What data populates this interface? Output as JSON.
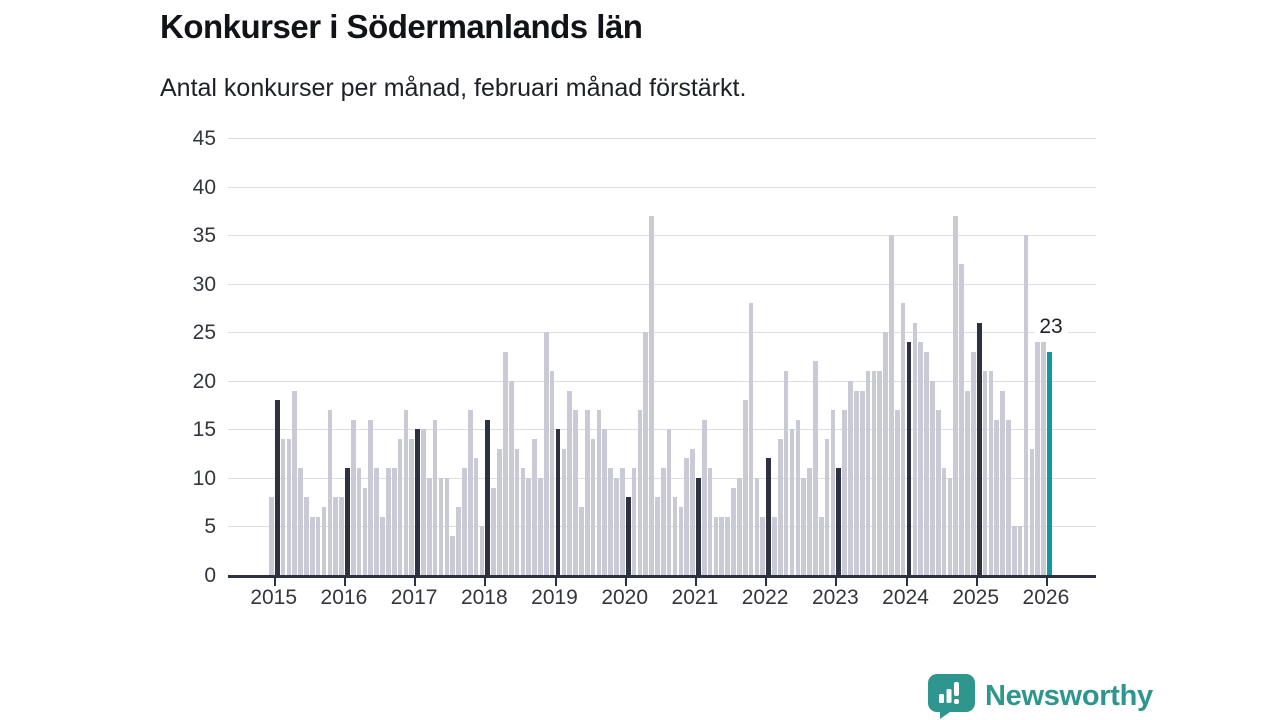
{
  "header": {
    "title": "Konkurser i Södermanlands län",
    "subtitle": "Antal konkurser per månad, februari månad förstärkt."
  },
  "annotation": {
    "label": "23"
  },
  "logo": {
    "text": "Newsworthy"
  },
  "colors": {
    "bar_light": "#c9cad6",
    "bar_february": "#2d3142",
    "bar_highlight": "#0f9b9c",
    "gridline": "#dcdce1",
    "axis": "#2d3142",
    "logo_teal": "#2e968f"
  },
  "chart_data": {
    "type": "bar",
    "title": "Konkurser i Södermanlands län",
    "subtitle": "Antal konkurser per månad, februari månad förstärkt.",
    "ylabel": "",
    "xlabel": "",
    "ylim": [
      0,
      45
    ],
    "y_ticks": [
      0,
      5,
      10,
      15,
      20,
      25,
      30,
      35,
      40,
      45
    ],
    "grid": "horizontal",
    "highlight_month": "februari",
    "highlighted_value": 23,
    "series": [
      {
        "year": "2015",
        "values": [
          8,
          18,
          14,
          14,
          19,
          11,
          8,
          6,
          6,
          7,
          17,
          8
        ]
      },
      {
        "year": "2016",
        "values": [
          8,
          11,
          16,
          11,
          9,
          16,
          11,
          6,
          11,
          11,
          14,
          17
        ]
      },
      {
        "year": "2017",
        "values": [
          14,
          15,
          15,
          10,
          16,
          10,
          10,
          4,
          7,
          11,
          17,
          12
        ]
      },
      {
        "year": "2018",
        "values": [
          5,
          16,
          9,
          13,
          23,
          20,
          13,
          11,
          10,
          14,
          10,
          25
        ]
      },
      {
        "year": "2019",
        "values": [
          21,
          15,
          13,
          19,
          17,
          7,
          17,
          14,
          17,
          15,
          11,
          10
        ]
      },
      {
        "year": "2020",
        "values": [
          11,
          8,
          11,
          17,
          25,
          37,
          8,
          11,
          15,
          8,
          7,
          12
        ]
      },
      {
        "year": "2021",
        "values": [
          13,
          10,
          16,
          11,
          6,
          6,
          6,
          9,
          10,
          18,
          28,
          10
        ]
      },
      {
        "year": "2022",
        "values": [
          6,
          12,
          6,
          14,
          21,
          15,
          16,
          10,
          11,
          22,
          6,
          14
        ]
      },
      {
        "year": "2023",
        "values": [
          17,
          11,
          17,
          20,
          19,
          19,
          21,
          21,
          21,
          25,
          35,
          17
        ]
      },
      {
        "year": "2024",
        "values": [
          28,
          24,
          26,
          24,
          23,
          20,
          17,
          11,
          10,
          37,
          32,
          19
        ]
      },
      {
        "year": "2025",
        "values": [
          23,
          26,
          21,
          21,
          16,
          19,
          16,
          5,
          5,
          35,
          13,
          24
        ]
      },
      {
        "year": "2026",
        "values": [
          24,
          23
        ]
      }
    ]
  }
}
